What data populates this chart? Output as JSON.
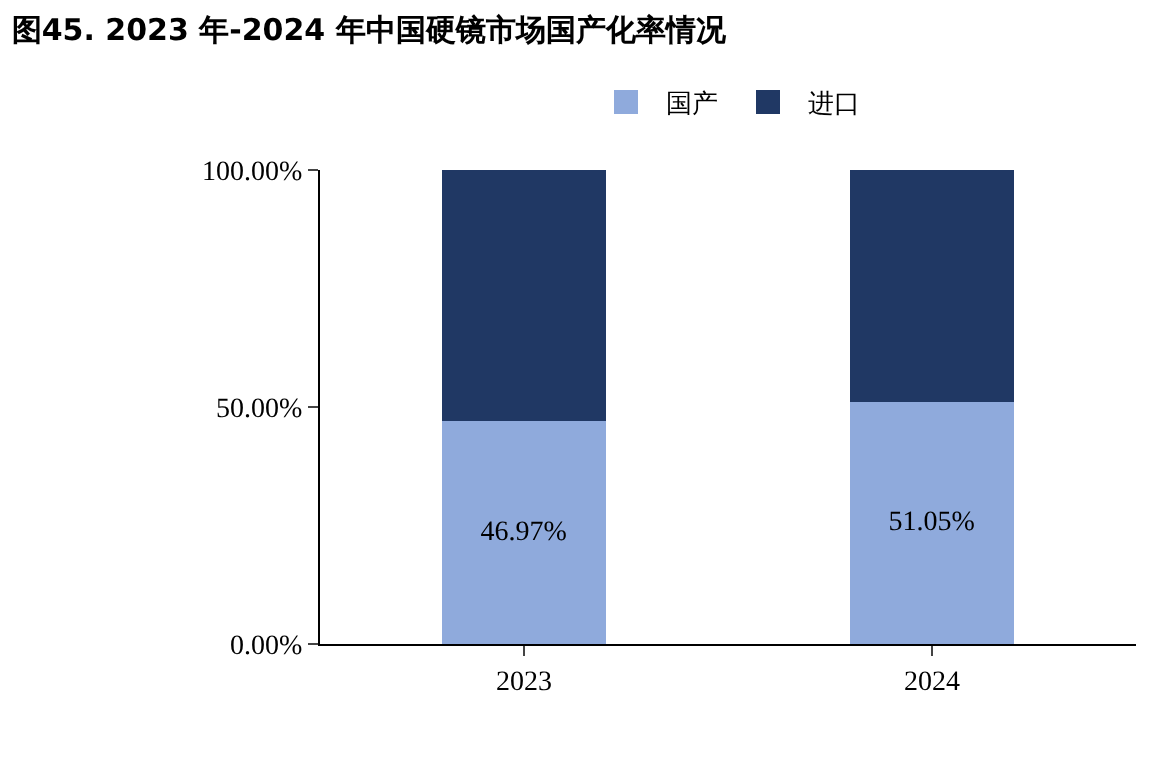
{
  "chart_data": {
    "type": "bar",
    "title": "图45. 2023 年-2024 年中国硬镜市场国产化率情况",
    "categories": [
      "2023",
      "2024"
    ],
    "stacked": true,
    "series": [
      {
        "name": "国产",
        "color": "#8faadc",
        "values": [
          46.97,
          51.05
        ],
        "value_labels": [
          "46.97%",
          "51.05%"
        ]
      },
      {
        "name": "进口",
        "color": "#203864",
        "values": [
          53.03,
          48.95
        ]
      }
    ],
    "ylim": [
      0,
      100
    ],
    "yticks": [
      {
        "value": 0,
        "label": "0.00%"
      },
      {
        "value": 50,
        "label": "50.00%"
      },
      {
        "value": 100,
        "label": "100.00%"
      }
    ],
    "grid": false,
    "legend": "top"
  }
}
